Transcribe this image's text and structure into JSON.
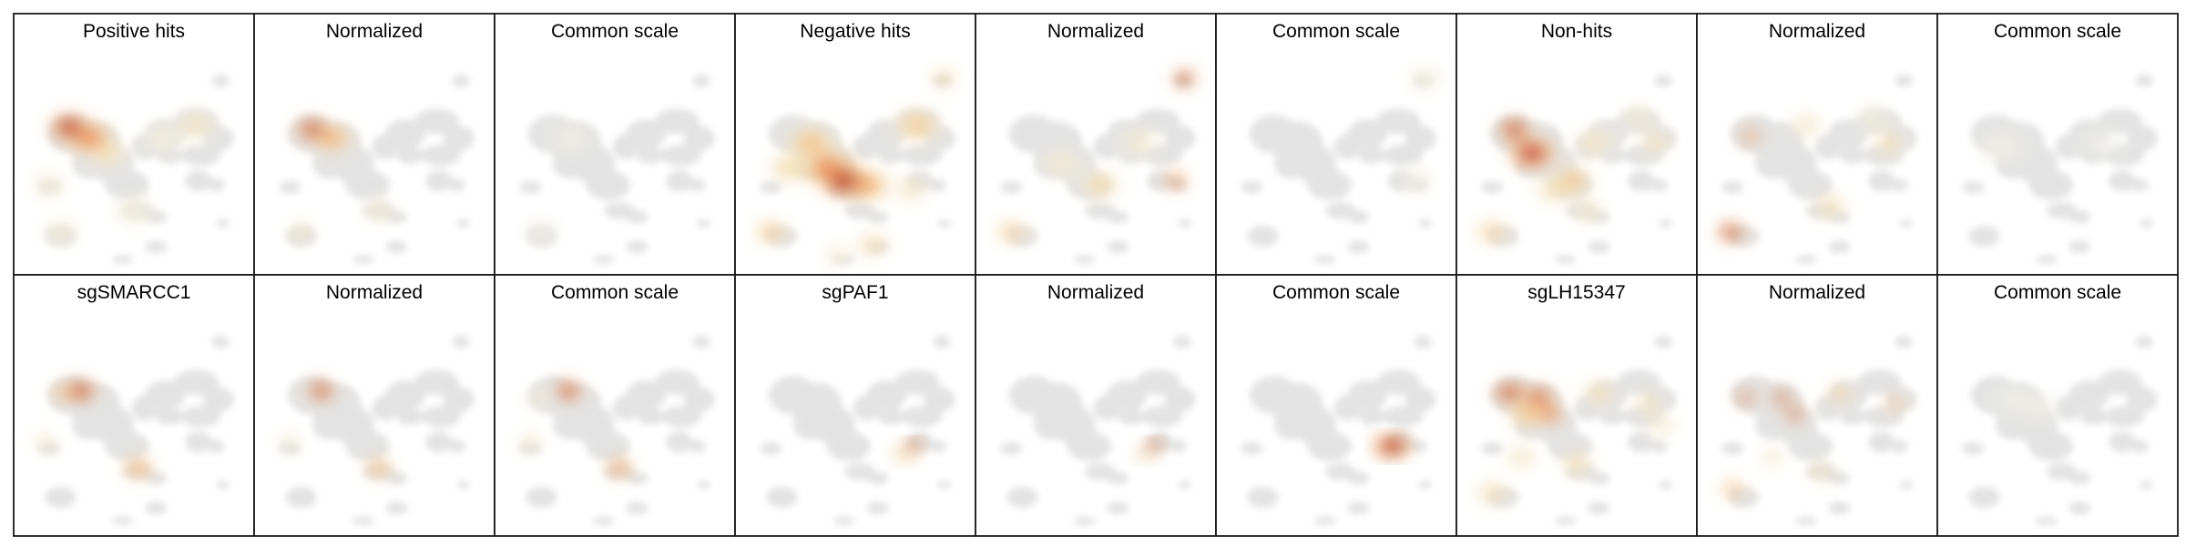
{
  "chart_data": {
    "type": "heatmap",
    "panel_titles": [
      [
        "Positive hits",
        "Normalized",
        "Common scale",
        "Negative hits",
        "Normalized",
        "Common scale",
        "Non-hits",
        "Normalized",
        "Common scale"
      ],
      [
        "sgSMARCC1",
        "Normalized",
        "Common scale",
        "sgPAF1",
        "Normalized",
        "Common scale",
        "sgLH15347",
        "Normalized",
        "Common scale"
      ]
    ],
    "xlabel": "",
    "ylabel": "",
    "grid": false,
    "legend": "none",
    "colormap": [
      "#ececec",
      "#f3ecd6",
      "#f6d8a0",
      "#f2a866",
      "#e05a3a",
      "#b40d1d"
    ],
    "background_embedding_color": "#e3e3e3",
    "panels": [
      [
        {
          "hotspots": [
            [
              0.21,
              0.33,
              1.0,
              0.05
            ],
            [
              0.3,
              0.38,
              0.7,
              0.06
            ],
            [
              0.38,
              0.45,
              0.35,
              0.05
            ],
            [
              0.78,
              0.32,
              0.3,
              0.05
            ],
            [
              0.63,
              0.38,
              0.2,
              0.05
            ],
            [
              0.12,
              0.6,
              0.25,
              0.04
            ],
            [
              0.5,
              0.72,
              0.2,
              0.05
            ],
            [
              0.17,
              0.82,
              0.25,
              0.04
            ]
          ]
        },
        {
          "hotspots": [
            [
              0.22,
              0.34,
              1.0,
              0.04
            ],
            [
              0.31,
              0.38,
              0.6,
              0.05
            ],
            [
              0.17,
              0.82,
              0.35,
              0.03
            ],
            [
              0.52,
              0.72,
              0.25,
              0.04
            ]
          ]
        },
        {
          "hotspots": [
            [
              0.3,
              0.38,
              0.12,
              0.05
            ],
            [
              0.17,
              0.82,
              0.1,
              0.04
            ]
          ]
        },
        {
          "hotspots": [
            [
              0.45,
              0.58,
              1.0,
              0.06
            ],
            [
              0.38,
              0.52,
              0.7,
              0.07
            ],
            [
              0.3,
              0.4,
              0.5,
              0.06
            ],
            [
              0.55,
              0.6,
              0.6,
              0.06
            ],
            [
              0.2,
              0.52,
              0.4,
              0.05
            ],
            [
              0.78,
              0.32,
              0.45,
              0.06
            ],
            [
              0.9,
              0.1,
              0.45,
              0.03
            ],
            [
              0.12,
              0.82,
              0.5,
              0.04
            ],
            [
              0.58,
              0.88,
              0.4,
              0.04
            ],
            [
              0.75,
              0.62,
              0.35,
              0.04
            ],
            [
              0.42,
              0.93,
              0.3,
              0.03
            ]
          ]
        },
        {
          "hotspots": [
            [
              0.9,
              0.1,
              1.0,
              0.03
            ],
            [
              0.86,
              0.58,
              0.8,
              0.03
            ],
            [
              0.52,
              0.6,
              0.4,
              0.05
            ],
            [
              0.35,
              0.5,
              0.25,
              0.05
            ],
            [
              0.12,
              0.82,
              0.45,
              0.04
            ],
            [
              0.7,
              0.4,
              0.25,
              0.05
            ]
          ]
        },
        {
          "hotspots": [
            [
              0.9,
              0.1,
              0.2,
              0.04
            ],
            [
              0.86,
              0.58,
              0.15,
              0.04
            ]
          ]
        },
        {
          "hotspots": [
            [
              0.3,
              0.45,
              0.9,
              0.06
            ],
            [
              0.22,
              0.34,
              1.0,
              0.04
            ],
            [
              0.48,
              0.58,
              0.5,
              0.05
            ],
            [
              0.58,
              0.4,
              0.3,
              0.05
            ],
            [
              0.85,
              0.4,
              0.35,
              0.04
            ],
            [
              0.12,
              0.82,
              0.45,
              0.04
            ],
            [
              0.55,
              0.72,
              0.3,
              0.04
            ],
            [
              0.78,
              0.28,
              0.25,
              0.04
            ],
            [
              0.4,
              0.62,
              0.35,
              0.05
            ]
          ]
        },
        {
          "hotspots": [
            [
              0.11,
              0.82,
              1.0,
              0.035
            ],
            [
              0.2,
              0.37,
              0.8,
              0.025
            ],
            [
              0.56,
              0.7,
              0.4,
              0.04
            ],
            [
              0.82,
              0.4,
              0.4,
              0.04
            ],
            [
              0.45,
              0.32,
              0.3,
              0.04
            ],
            [
              0.75,
              0.28,
              0.2,
              0.04
            ]
          ]
        },
        {
          "hotspots": [
            [
              0.25,
              0.42,
              0.08,
              0.06
            ],
            [
              0.7,
              0.4,
              0.06,
              0.05
            ]
          ]
        }
      ],
      [
        {
          "hotspots": [
            [
              0.26,
              0.34,
              1.0,
              0.04
            ],
            [
              0.18,
              0.35,
              0.6,
              0.03
            ],
            [
              0.52,
              0.7,
              0.6,
              0.04
            ],
            [
              0.1,
              0.58,
              0.3,
              0.03
            ]
          ]
        },
        {
          "hotspots": [
            [
              0.26,
              0.34,
              1.0,
              0.035
            ],
            [
              0.52,
              0.7,
              0.6,
              0.035
            ],
            [
              0.12,
              0.58,
              0.25,
              0.03
            ]
          ]
        },
        {
          "hotspots": [
            [
              0.29,
              0.34,
              1.0,
              0.035
            ],
            [
              0.52,
              0.7,
              0.7,
              0.035
            ],
            [
              0.12,
              0.58,
              0.3,
              0.03
            ],
            [
              0.15,
              0.38,
              0.25,
              0.03
            ]
          ]
        },
        {
          "hotspots": [
            [
              0.76,
              0.6,
              1.0,
              0.025
            ],
            [
              0.72,
              0.64,
              0.35,
              0.035
            ]
          ]
        },
        {
          "hotspots": [
            [
              0.76,
              0.6,
              1.0,
              0.025
            ],
            [
              0.72,
              0.64,
              0.3,
              0.03
            ]
          ]
        },
        {
          "hotspots": [
            [
              0.75,
              0.6,
              1.0,
              0.05
            ]
          ]
        },
        {
          "hotspots": [
            [
              0.2,
              0.35,
              1.0,
              0.04
            ],
            [
              0.33,
              0.37,
              0.9,
              0.04
            ],
            [
              0.38,
              0.45,
              0.8,
              0.035
            ],
            [
              0.28,
              0.45,
              0.5,
              0.05
            ],
            [
              0.6,
              0.35,
              0.4,
              0.04
            ],
            [
              0.82,
              0.4,
              0.4,
              0.035
            ],
            [
              0.12,
              0.82,
              0.4,
              0.04
            ],
            [
              0.5,
              0.68,
              0.4,
              0.04
            ],
            [
              0.25,
              0.65,
              0.3,
              0.04
            ],
            [
              0.88,
              0.5,
              0.3,
              0.035
            ]
          ]
        },
        {
          "hotspots": [
            [
              0.18,
              0.37,
              0.9,
              0.025
            ],
            [
              0.34,
              0.37,
              1.0,
              0.025
            ],
            [
              0.4,
              0.45,
              1.0,
              0.025
            ],
            [
              0.6,
              0.35,
              0.5,
              0.03
            ],
            [
              0.85,
              0.4,
              0.6,
              0.025
            ],
            [
              0.12,
              0.8,
              0.6,
              0.03
            ],
            [
              0.3,
              0.65,
              0.3,
              0.03
            ],
            [
              0.52,
              0.72,
              0.4,
              0.03
            ]
          ]
        },
        {
          "hotspots": [
            [
              0.4,
              0.42,
              0.1,
              0.05
            ],
            [
              0.3,
              0.38,
              0.06,
              0.05
            ]
          ]
        }
      ]
    ]
  }
}
